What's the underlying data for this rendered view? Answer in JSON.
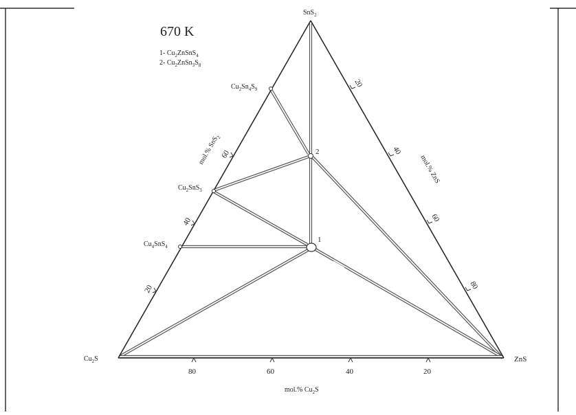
{
  "diagram": {
    "temperature": "670 K",
    "legend": [
      {
        "num": "1- ",
        "label": "Cu",
        "sub1": "2",
        "mid": "ZnSnS",
        "sub2": "4"
      },
      {
        "num": "2- ",
        "label": "Cu",
        "sub1": "2",
        "mid": "ZnSn",
        "sub2": "3",
        "tail": "S",
        "sub3": "8"
      }
    ],
    "vertices": {
      "top": {
        "base": "SnS",
        "sub": "2"
      },
      "left": {
        "base": "Cu",
        "sub": "2",
        "tail": "S"
      },
      "right": {
        "base": "ZnS"
      }
    },
    "compounds": [
      {
        "id": "cu2sn4s9",
        "base": "Cu",
        "sub1": "2",
        "mid": "Sn",
        "sub2": "4",
        "tail": "S",
        "sub3": "9"
      },
      {
        "id": "cu2sns3",
        "base": "Cu",
        "sub1": "2",
        "mid": "SnS",
        "sub2": "3"
      },
      {
        "id": "cu4sns4",
        "base": "Cu",
        "sub1": "4",
        "mid": "SnS",
        "sub2": "4"
      }
    ],
    "phase_points": [
      "1",
      "2"
    ],
    "axes": {
      "bottom": {
        "label_base": "mol.% Cu",
        "label_sub": "2",
        "label_tail": "S",
        "ticks": [
          "80",
          "60",
          "40",
          "20"
        ]
      },
      "left": {
        "label_base": "mol.% SnS",
        "label_sub": "2",
        "ticks": [
          "20",
          "40",
          "60"
        ]
      },
      "right": {
        "label": "mol.% ZnS",
        "ticks": [
          "20",
          "40",
          "60",
          "80"
        ]
      }
    }
  }
}
